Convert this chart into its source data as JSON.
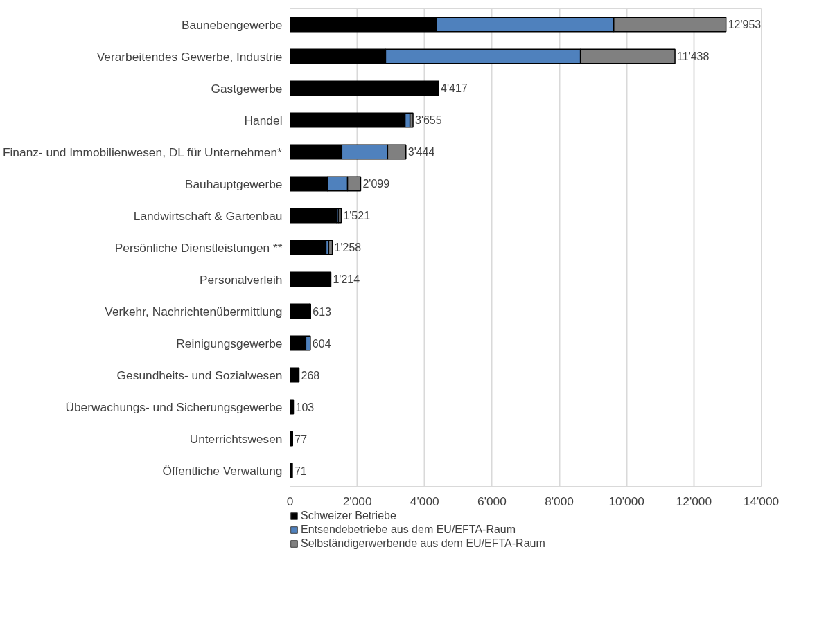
{
  "chart_data": {
    "type": "bar",
    "orientation": "horizontal",
    "stacked": true,
    "categories": [
      "Baunebengewerbe",
      "Verarbeitendes Gewerbe, Industrie",
      "Gastgewerbe",
      "Handel",
      "Finanz- und Immobilienwesen, DL für Unternehmen*",
      "Bauhauptgewerbe",
      "Landwirtschaft & Gartenbau",
      "Persönliche Dienstleistungen **",
      "Personalverleih",
      "Verkehr, Nachrichtenübermittlung",
      "Reinigungsgewerbe",
      "Gesundheits- und Sozialwesen",
      "Überwachungs- und Sicherungsgewerbe",
      "Unterrichtswesen",
      "Öffentliche Verwaltung"
    ],
    "series": [
      {
        "name": "Schweizer Betriebe",
        "color": "#000000",
        "values": [
          4360,
          2840,
          4417,
          3420,
          1540,
          1110,
          1380,
          1070,
          1214,
          580,
          470,
          268,
          103,
          77,
          71
        ]
      },
      {
        "name": "Entsendebetriebe aus dem EU/EFTA-Raum",
        "color": "#4f81bd",
        "values": [
          5260,
          5790,
          0,
          145,
          1360,
          600,
          60,
          80,
          0,
          33,
          134,
          0,
          0,
          0,
          0
        ]
      },
      {
        "name": "Selbständigerwerbende aus dem EU/EFTA-Raum",
        "color": "#808080",
        "values": [
          3333,
          2808,
          0,
          90,
          544,
          389,
          81,
          108,
          0,
          0,
          0,
          0,
          0,
          0,
          0
        ]
      }
    ],
    "totals": [
      "12'953",
      "11'438",
      "4'417",
      "3'655",
      "3'444",
      "2'099",
      "1'521",
      "1'258",
      "1'214",
      "613",
      "604",
      "268",
      "103",
      "77",
      "71"
    ],
    "xlim": [
      0,
      14000
    ],
    "xticks": [
      0,
      {
        "value": 2000,
        "label": "2'000"
      },
      {
        "value": 4000,
        "label": "4'000"
      },
      {
        "value": 6000,
        "label": "6'000"
      },
      {
        "value": 8000,
        "label": "8'000"
      },
      {
        "value": 10000,
        "label": "10'000"
      },
      {
        "value": 12000,
        "label": "12'000"
      },
      {
        "value": 14000,
        "label": "14'000"
      }
    ],
    "grid": "x",
    "legend": "bottom"
  }
}
